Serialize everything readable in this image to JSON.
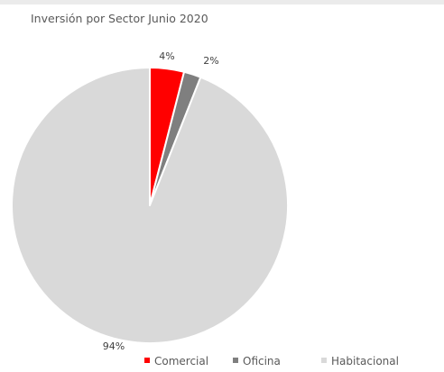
{
  "chart_data": {
    "type": "pie",
    "title": "Inversión por Sector Junio 2020",
    "categories": [
      "Comercial",
      "Oficina",
      "Habitacional"
    ],
    "values": [
      4,
      2,
      94
    ],
    "labels": [
      "4%",
      "2%",
      "94%"
    ],
    "colors": [
      "#ff0000",
      "#7f7f7f",
      "#d9d9d9"
    ],
    "legend_position": "bottom",
    "start_angle_deg": 0,
    "direction": "clockwise"
  }
}
